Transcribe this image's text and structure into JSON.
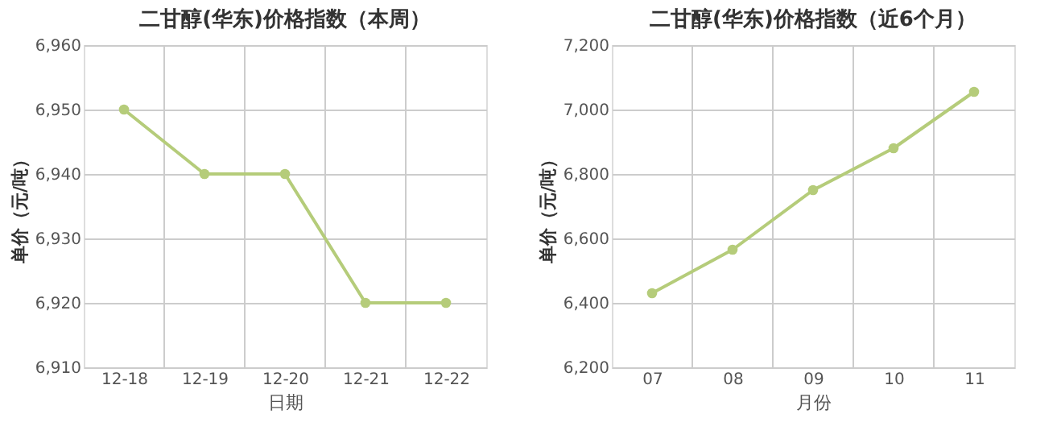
{
  "chart_data": [
    {
      "type": "line",
      "title": "二甘醇(华东)价格指数（本周）",
      "xlabel": "日期",
      "ylabel": "单价（元/吨）",
      "categories": [
        "12-18",
        "12-19",
        "12-20",
        "12-21",
        "12-22"
      ],
      "series": [
        {
          "color": "#b5cc7a",
          "values": [
            6950,
            6940,
            6940,
            6920,
            6920
          ]
        }
      ],
      "ylim": [
        6910,
        6960
      ],
      "yticks": [
        {
          "value": 6910,
          "label": "6,910"
        },
        {
          "value": 6920,
          "label": "6,920"
        },
        {
          "value": 6930,
          "label": "6,930"
        },
        {
          "value": 6940,
          "label": "6,940"
        },
        {
          "value": 6950,
          "label": "6,950"
        },
        {
          "value": 6960,
          "label": "6,960"
        }
      ],
      "grid": true,
      "marker": "circle",
      "line_style": "solid",
      "legend": false
    },
    {
      "type": "line",
      "title": "二甘醇(华东)价格指数（近6个月）",
      "xlabel": "月份",
      "ylabel": "单价（元/吨）",
      "categories": [
        "07",
        "08",
        "09",
        "10",
        "11"
      ],
      "series": [
        {
          "color": "#b5cc7a",
          "values": [
            6430,
            6565,
            6750,
            6880,
            7055
          ]
        }
      ],
      "ylim": [
        6200,
        7200
      ],
      "yticks": [
        {
          "value": 6200,
          "label": "6,200"
        },
        {
          "value": 6400,
          "label": "6,400"
        },
        {
          "value": 6600,
          "label": "6,600"
        },
        {
          "value": 6800,
          "label": "6,800"
        },
        {
          "value": 7000,
          "label": "7,000"
        },
        {
          "value": 7200,
          "label": "7,200"
        }
      ],
      "grid": true,
      "marker": "circle",
      "line_style": "solid",
      "legend": false
    }
  ]
}
